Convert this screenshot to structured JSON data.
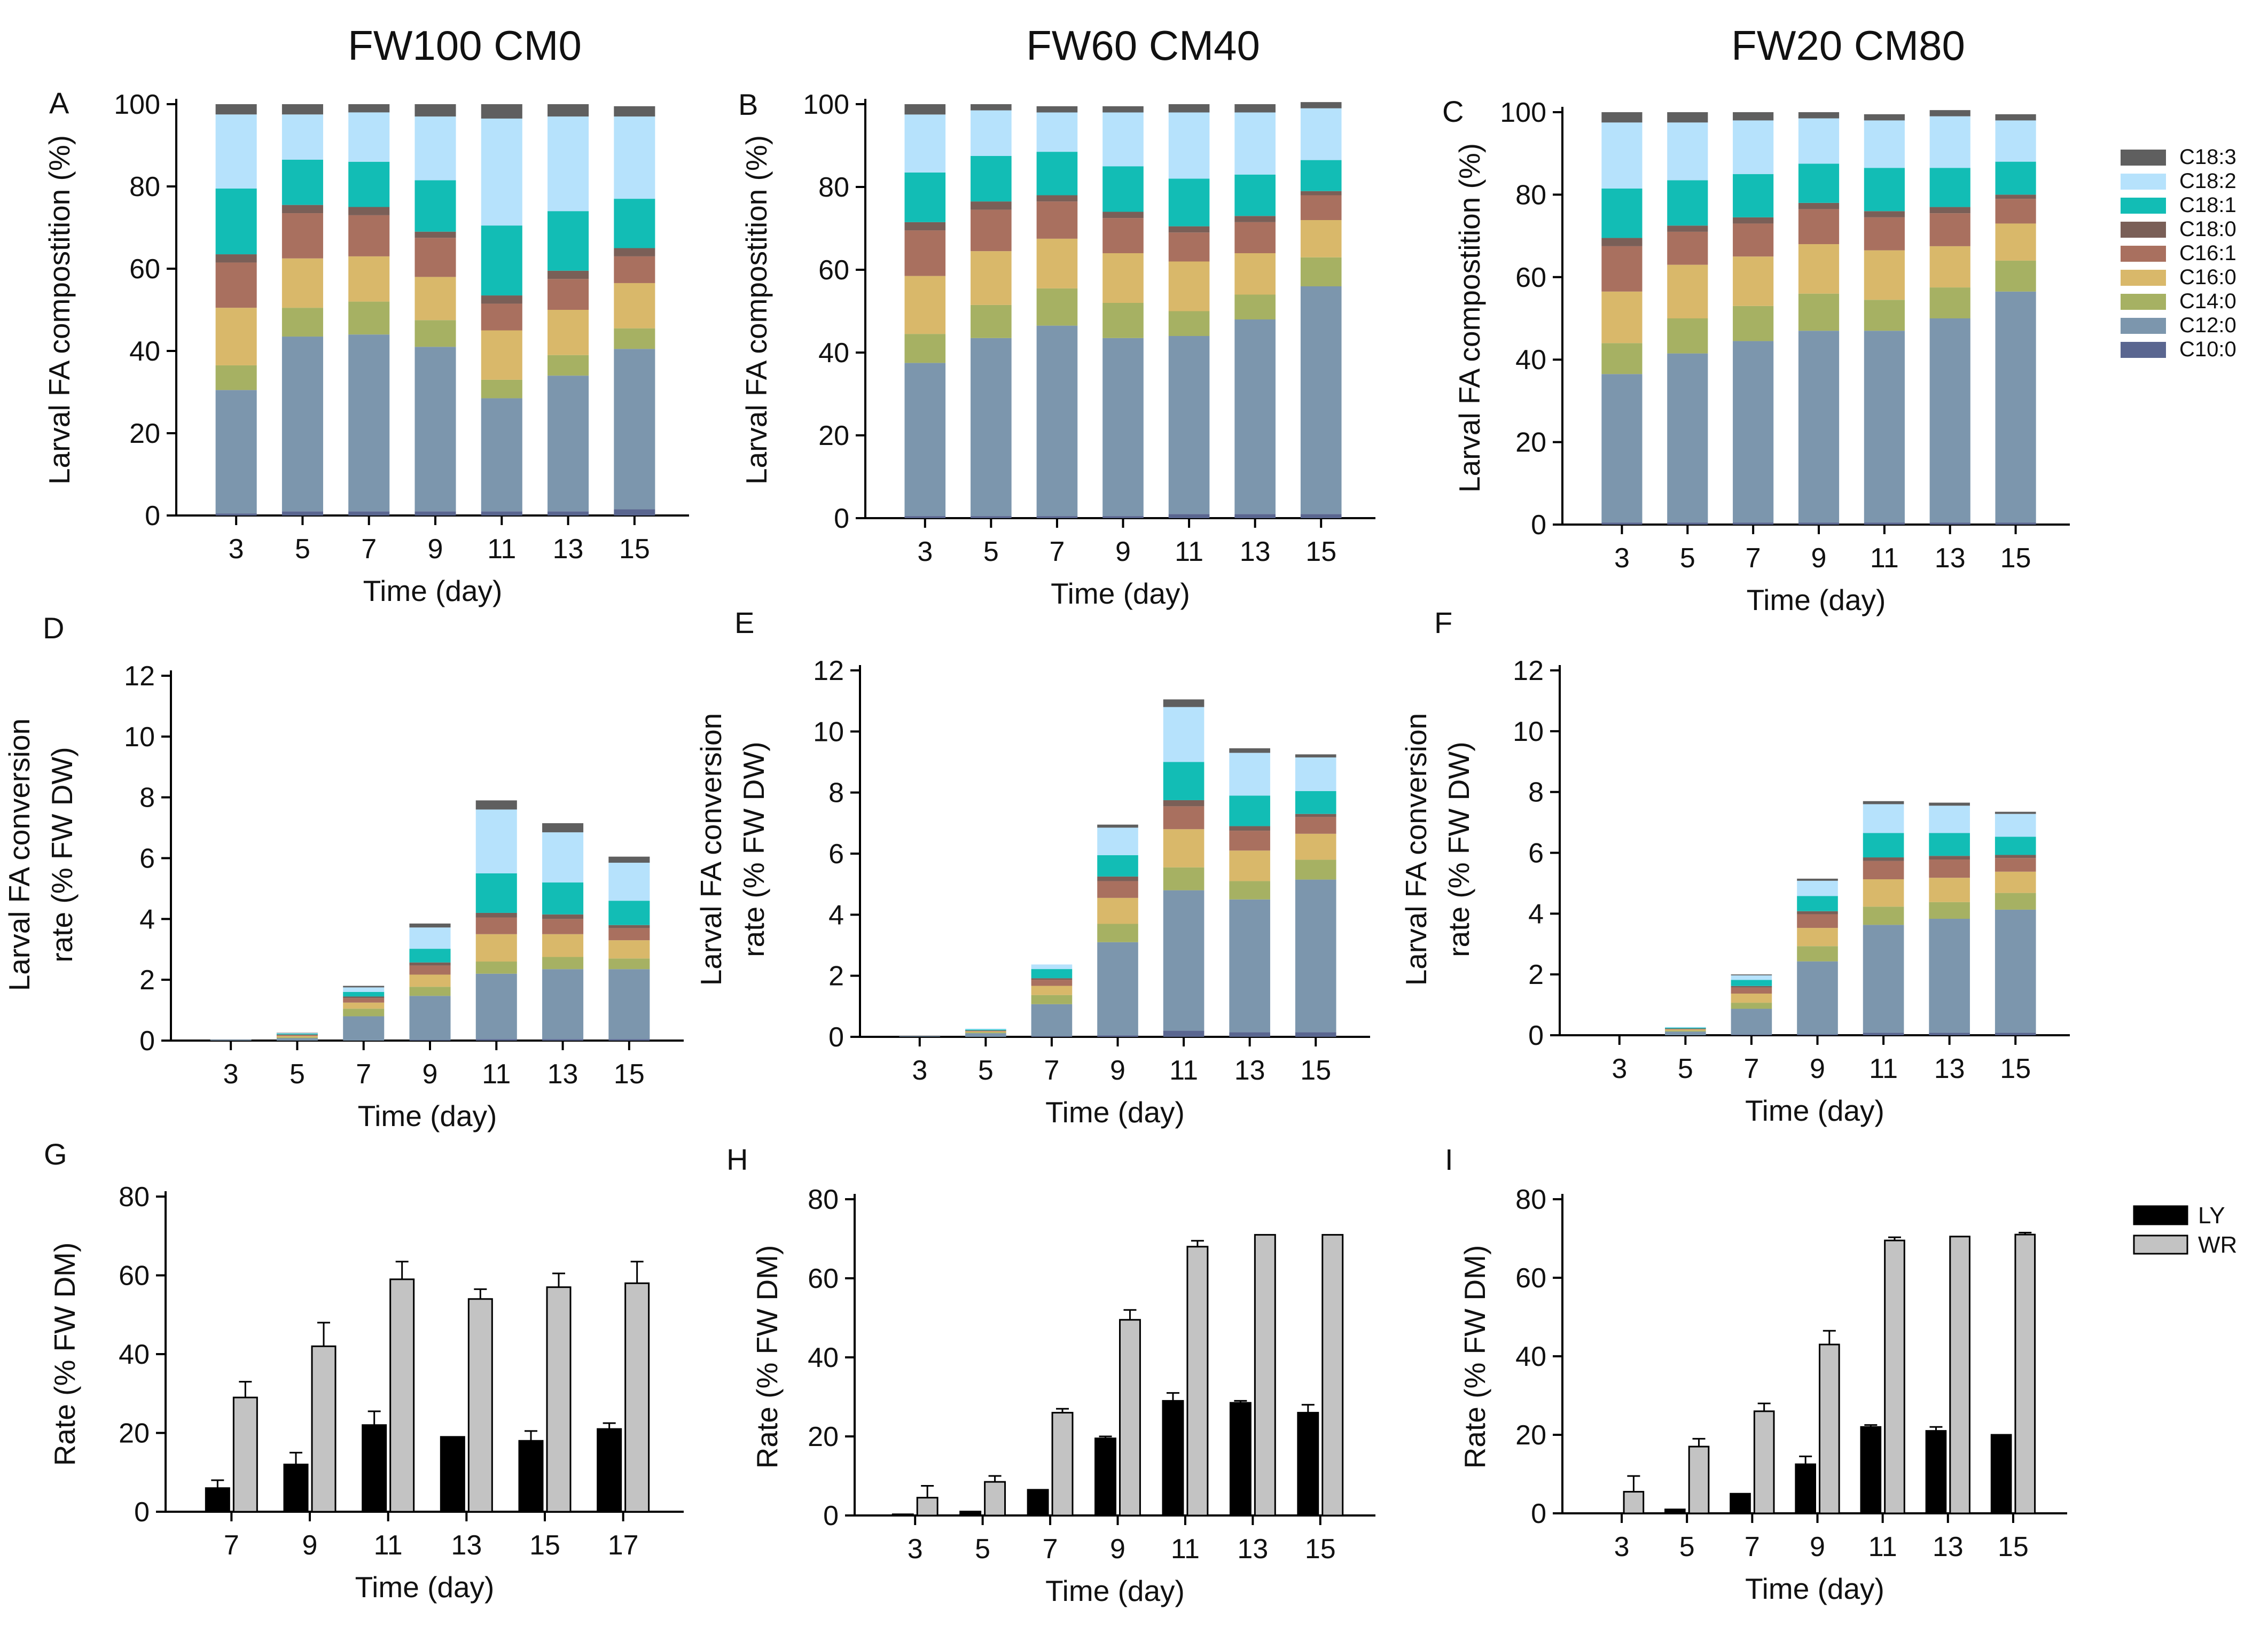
{
  "column_titles": [
    "FW100 CM0",
    "FW60 CM40",
    "FW20 CM80"
  ],
  "legend_fa": [
    {
      "name": "C18:3",
      "color": "#5f5f5f"
    },
    {
      "name": "C18:2",
      "color": "#b6e2fc"
    },
    {
      "name": "C18:1",
      "color": "#12bdb5"
    },
    {
      "name": "C18:0",
      "color": "#7a5f57"
    },
    {
      "name": "C16:1",
      "color": "#a9705f"
    },
    {
      "name": "C16:0",
      "color": "#d9b86a"
    },
    {
      "name": "C14:0",
      "color": "#a6b163"
    },
    {
      "name": "C12:0",
      "color": "#7c96ad"
    },
    {
      "name": "C10:0",
      "color": "#5a6690"
    }
  ],
  "legend_rate": [
    {
      "name": "LY",
      "color": "#000000"
    },
    {
      "name": "WR",
      "color": "#c3c3c3"
    }
  ],
  "chart_data": [
    {
      "panel": "A",
      "type": "stacked-bar",
      "title": "FW100 CM0",
      "xlabel": "Time (day)",
      "ylabel": [
        "Larval FA compostition (%)"
      ],
      "ylim": [
        0,
        100
      ],
      "yticks": [
        0,
        20,
        40,
        60,
        80,
        100
      ],
      "categories": [
        "3",
        "5",
        "7",
        "9",
        "11",
        "13",
        "15"
      ],
      "series": [
        {
          "name": "C10:0",
          "values": [
            0.5,
            1,
            1,
            1,
            1,
            1,
            1.5
          ]
        },
        {
          "name": "C12:0",
          "values": [
            30,
            42.5,
            43,
            40,
            27.5,
            33,
            39
          ]
        },
        {
          "name": "C14:0",
          "values": [
            6,
            7,
            8,
            6.5,
            4.5,
            5,
            5
          ]
        },
        {
          "name": "C16:0",
          "values": [
            14,
            12,
            11,
            10.5,
            12,
            11,
            11
          ]
        },
        {
          "name": "C16:1",
          "values": [
            11,
            11,
            10,
            9.5,
            6.5,
            7.5,
            6.5
          ]
        },
        {
          "name": "C18:0",
          "values": [
            2,
            2,
            2,
            1.5,
            2,
            2,
            2
          ]
        },
        {
          "name": "C18:1",
          "values": [
            16,
            11,
            11,
            12.5,
            17,
            14.5,
            12
          ]
        },
        {
          "name": "C18:2",
          "values": [
            18,
            11,
            12,
            15.5,
            26,
            23,
            20
          ]
        },
        {
          "name": "C18:3",
          "values": [
            2.5,
            2.5,
            2,
            3,
            3.5,
            3,
            2.5
          ]
        }
      ]
    },
    {
      "panel": "B",
      "type": "stacked-bar",
      "title": "FW60 CM40",
      "xlabel": "Time (day)",
      "ylabel": [
        "Larval FA compostition (%)"
      ],
      "ylim": [
        0,
        100
      ],
      "yticks": [
        0,
        20,
        40,
        60,
        80,
        100
      ],
      "categories": [
        "3",
        "5",
        "7",
        "9",
        "11",
        "13",
        "15"
      ],
      "series": [
        {
          "name": "C10:0",
          "values": [
            0.5,
            0.5,
            0.5,
            0.5,
            1,
            1,
            1
          ]
        },
        {
          "name": "C12:0",
          "values": [
            37,
            43,
            46,
            43,
            43,
            47,
            55
          ]
        },
        {
          "name": "C14:0",
          "values": [
            7,
            8,
            9,
            8.5,
            6,
            6,
            7
          ]
        },
        {
          "name": "C16:0",
          "values": [
            14,
            13,
            12,
            12,
            12,
            10,
            9
          ]
        },
        {
          "name": "C16:1",
          "values": [
            11,
            10,
            9,
            8.5,
            7,
            7.5,
            6
          ]
        },
        {
          "name": "C18:0",
          "values": [
            2,
            2,
            1.5,
            1.5,
            1.5,
            1.5,
            1
          ]
        },
        {
          "name": "C18:1",
          "values": [
            12,
            11,
            10.5,
            11,
            11.5,
            10,
            7.5
          ]
        },
        {
          "name": "C18:2",
          "values": [
            14,
            11,
            9.5,
            13,
            16,
            15,
            12.5
          ]
        },
        {
          "name": "C18:3",
          "values": [
            2.5,
            1.5,
            1.5,
            1.5,
            2,
            2,
            1.5
          ]
        }
      ]
    },
    {
      "panel": "C",
      "type": "stacked-bar",
      "title": "FW20 CM80",
      "xlabel": "Time (day)",
      "ylabel": [
        "Larval FA compostition (%)"
      ],
      "ylim": [
        0,
        100
      ],
      "yticks": [
        0,
        20,
        40,
        60,
        80,
        100
      ],
      "categories": [
        "3",
        "5",
        "7",
        "9",
        "11",
        "13",
        "15"
      ],
      "series": [
        {
          "name": "C10:0",
          "values": [
            0.5,
            0.5,
            0.5,
            0.5,
            0.5,
            0.5,
            0.5
          ]
        },
        {
          "name": "C12:0",
          "values": [
            36,
            41,
            44,
            46.5,
            46.5,
            49.5,
            56
          ]
        },
        {
          "name": "C14:0",
          "values": [
            7.5,
            8.5,
            8.5,
            9,
            7.5,
            7.5,
            7.5
          ]
        },
        {
          "name": "C16:0",
          "values": [
            12.5,
            13,
            12,
            12,
            12,
            10,
            9
          ]
        },
        {
          "name": "C16:1",
          "values": [
            11,
            8,
            8,
            8.5,
            8,
            8,
            6
          ]
        },
        {
          "name": "C18:0",
          "values": [
            2,
            1.5,
            1.5,
            1.5,
            1.5,
            1.5,
            1
          ]
        },
        {
          "name": "C18:1",
          "values": [
            12,
            11,
            10.5,
            9.5,
            10.5,
            9.5,
            8
          ]
        },
        {
          "name": "C18:2",
          "values": [
            16,
            14,
            13,
            11,
            11.5,
            12.5,
            10
          ]
        },
        {
          "name": "C18:3",
          "values": [
            2.5,
            2.5,
            2,
            1.5,
            1.5,
            1.5,
            1.5
          ]
        }
      ]
    },
    {
      "panel": "D",
      "type": "stacked-bar",
      "xlabel": "Time (day)",
      "ylabel": [
        "Larval FA conversion",
        "rate (% FW DW)"
      ],
      "ylim": [
        0,
        12
      ],
      "yticks": [
        0,
        2,
        4,
        6,
        8,
        10,
        12
      ],
      "categories": [
        "3",
        "5",
        "7",
        "9",
        "11",
        "13",
        "15"
      ],
      "series": [
        {
          "name": "C10:0",
          "values": [
            0,
            0,
            0,
            0.02,
            0.05,
            0.05,
            0.05
          ]
        },
        {
          "name": "C12:0",
          "values": [
            0.03,
            0.08,
            0.8,
            1.45,
            2.15,
            2.3,
            2.3
          ]
        },
        {
          "name": "C14:0",
          "values": [
            0,
            0.03,
            0.25,
            0.3,
            0.4,
            0.4,
            0.35
          ]
        },
        {
          "name": "C16:0",
          "values": [
            0,
            0.04,
            0.2,
            0.4,
            0.9,
            0.75,
            0.6
          ]
        },
        {
          "name": "C16:1",
          "values": [
            0,
            0.04,
            0.15,
            0.3,
            0.55,
            0.5,
            0.4
          ]
        },
        {
          "name": "C18:0",
          "values": [
            0,
            0.01,
            0.05,
            0.1,
            0.15,
            0.15,
            0.1
          ]
        },
        {
          "name": "C18:1",
          "values": [
            0,
            0.03,
            0.15,
            0.45,
            1.3,
            1.05,
            0.8
          ]
        },
        {
          "name": "C18:2",
          "values": [
            0,
            0.02,
            0.15,
            0.7,
            2.1,
            1.65,
            1.25
          ]
        },
        {
          "name": "C18:3",
          "values": [
            0,
            0.01,
            0.05,
            0.13,
            0.3,
            0.3,
            0.2
          ]
        }
      ]
    },
    {
      "panel": "E",
      "type": "stacked-bar",
      "xlabel": "Time (day)",
      "ylabel": [
        "Larval FA conversion",
        "rate (% FW DW)"
      ],
      "ylim": [
        0,
        12
      ],
      "yticks": [
        0,
        2,
        4,
        6,
        8,
        10,
        12
      ],
      "categories": [
        "3",
        "5",
        "7",
        "9",
        "11",
        "13",
        "15"
      ],
      "series": [
        {
          "name": "C10:0",
          "values": [
            0,
            0,
            0.02,
            0.05,
            0.2,
            0.15,
            0.15
          ]
        },
        {
          "name": "C12:0",
          "values": [
            0.02,
            0.12,
            1.05,
            3.05,
            4.6,
            4.35,
            5
          ]
        },
        {
          "name": "C14:0",
          "values": [
            0,
            0.03,
            0.3,
            0.6,
            0.75,
            0.6,
            0.65
          ]
        },
        {
          "name": "C16:0",
          "values": [
            0,
            0.03,
            0.3,
            0.85,
            1.25,
            1.0,
            0.85
          ]
        },
        {
          "name": "C16:1",
          "values": [
            0,
            0.02,
            0.2,
            0.55,
            0.75,
            0.65,
            0.55
          ]
        },
        {
          "name": "C18:0",
          "values": [
            0,
            0.01,
            0.05,
            0.15,
            0.2,
            0.15,
            0.1
          ]
        },
        {
          "name": "C18:1",
          "values": [
            0,
            0.03,
            0.3,
            0.7,
            1.25,
            1.0,
            0.75
          ]
        },
        {
          "name": "C18:2",
          "values": [
            0,
            0.03,
            0.15,
            0.9,
            1.8,
            1.4,
            1.1
          ]
        },
        {
          "name": "C18:3",
          "values": [
            0,
            0,
            0,
            0.1,
            0.25,
            0.15,
            0.1
          ]
        }
      ]
    },
    {
      "panel": "F",
      "type": "stacked-bar",
      "xlabel": "Time (day)",
      "ylabel": [
        "Larval FA conversion",
        "rate (% FW DW)"
      ],
      "ylim": [
        0,
        12
      ],
      "yticks": [
        0,
        2,
        4,
        6,
        8,
        10,
        12
      ],
      "categories": [
        "3",
        "5",
        "7",
        "9",
        "11",
        "13",
        "15"
      ],
      "series": [
        {
          "name": "C10:0",
          "values": [
            0,
            0,
            0.02,
            0.03,
            0.08,
            0.08,
            0.08
          ]
        },
        {
          "name": "C12:0",
          "values": [
            0,
            0.12,
            0.85,
            2.4,
            3.55,
            3.75,
            4.05
          ]
        },
        {
          "name": "C14:0",
          "values": [
            0,
            0.03,
            0.2,
            0.5,
            0.6,
            0.55,
            0.55
          ]
        },
        {
          "name": "C16:0",
          "values": [
            0,
            0.04,
            0.3,
            0.6,
            0.9,
            0.8,
            0.7
          ]
        },
        {
          "name": "C16:1",
          "values": [
            0,
            0.02,
            0.2,
            0.45,
            0.6,
            0.6,
            0.45
          ]
        },
        {
          "name": "C18:0",
          "values": [
            0,
            0.01,
            0.05,
            0.1,
            0.12,
            0.12,
            0.1
          ]
        },
        {
          "name": "C18:1",
          "values": [
            0,
            0.03,
            0.2,
            0.5,
            0.8,
            0.75,
            0.6
          ]
        },
        {
          "name": "C18:2",
          "values": [
            0,
            0.02,
            0.15,
            0.5,
            0.95,
            0.9,
            0.75
          ]
        },
        {
          "name": "C18:3",
          "values": [
            0,
            0,
            0.03,
            0.07,
            0.1,
            0.1,
            0.07
          ]
        }
      ]
    },
    {
      "panel": "G",
      "type": "bar",
      "xlabel": "Time (day)",
      "ylabel": [
        "Rate (% FW DM)"
      ],
      "ylim": [
        0,
        80
      ],
      "yticks": [
        0,
        20,
        40,
        60,
        80
      ],
      "categories": [
        "7",
        "9",
        "11",
        "13",
        "15",
        "17"
      ],
      "series": [
        {
          "name": "LY",
          "values": [
            6,
            12,
            22,
            19,
            18,
            21
          ],
          "errors": [
            2,
            3,
            3.5,
            0,
            2.5,
            1.5
          ]
        },
        {
          "name": "WR",
          "values": [
            29,
            42,
            59,
            54,
            57,
            58
          ],
          "errors": [
            4,
            6,
            4.5,
            2.5,
            3.5,
            5.5
          ]
        }
      ]
    },
    {
      "panel": "H",
      "type": "bar",
      "xlabel": "Time (day)",
      "ylabel": [
        "Rate (% FW DM)"
      ],
      "ylim": [
        0,
        80
      ],
      "yticks": [
        0,
        20,
        40,
        60,
        80
      ],
      "categories": [
        "3",
        "5",
        "7",
        "9",
        "11",
        "13",
        "15"
      ],
      "series": [
        {
          "name": "LY",
          "values": [
            0.3,
            1,
            6.5,
            19.5,
            29,
            28.5,
            26
          ],
          "errors": [
            0,
            0,
            0,
            0.5,
            2,
            0.5,
            2
          ]
        },
        {
          "name": "WR",
          "values": [
            4.5,
            8.5,
            26,
            49.5,
            68,
            71,
            71
          ],
          "errors": [
            3,
            1.5,
            1,
            2.5,
            1.5,
            0,
            0
          ]
        }
      ]
    },
    {
      "panel": "I",
      "type": "bar",
      "xlabel": "Time (day)",
      "ylabel": [
        "Rate (% FW DM)"
      ],
      "ylim": [
        0,
        80
      ],
      "yticks": [
        0,
        20,
        40,
        60,
        80
      ],
      "categories": [
        "3",
        "5",
        "7",
        "9",
        "11",
        "13",
        "15"
      ],
      "series": [
        {
          "name": "LY",
          "values": [
            0,
            1,
            5,
            12.5,
            22,
            21,
            20
          ],
          "errors": [
            0,
            0,
            0,
            2,
            0.5,
            1,
            0
          ]
        },
        {
          "name": "WR",
          "values": [
            5.5,
            17,
            26,
            43,
            69.5,
            70.5,
            71
          ],
          "errors": [
            4,
            2,
            2,
            3.5,
            0.8,
            0,
            0.5
          ]
        }
      ]
    }
  ]
}
